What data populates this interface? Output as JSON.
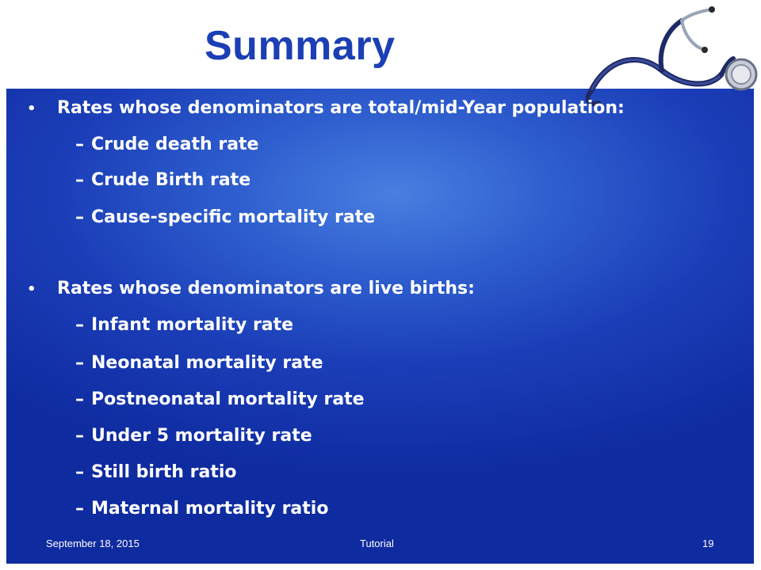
{
  "slide": {
    "title": "Summary",
    "groups": [
      {
        "heading": "Rates whose denominators are total/mid-Year population:",
        "items": [
          "Crude death rate",
          "Crude Birth rate",
          "Cause-specific mortality rate"
        ]
      },
      {
        "heading": "Rates whose denominators are live births:",
        "items": [
          "Infant mortality rate",
          "Neonatal mortality rate",
          "Postneonatal mortality rate",
          "Under 5 mortality rate",
          "Still birth ratio",
          "Maternal mortality ratio"
        ]
      }
    ],
    "bullet_marker": "•",
    "sub_marker": "–"
  },
  "footer": {
    "date": "September 18, 2015",
    "center": "Tutorial",
    "page": "19"
  },
  "colors": {
    "title": "#1c3fb5",
    "panel_top": "#4a7fe0",
    "panel_bottom": "#0f2ba0",
    "text": "#ffffff"
  },
  "icons": [
    "stethoscope-icon"
  ]
}
